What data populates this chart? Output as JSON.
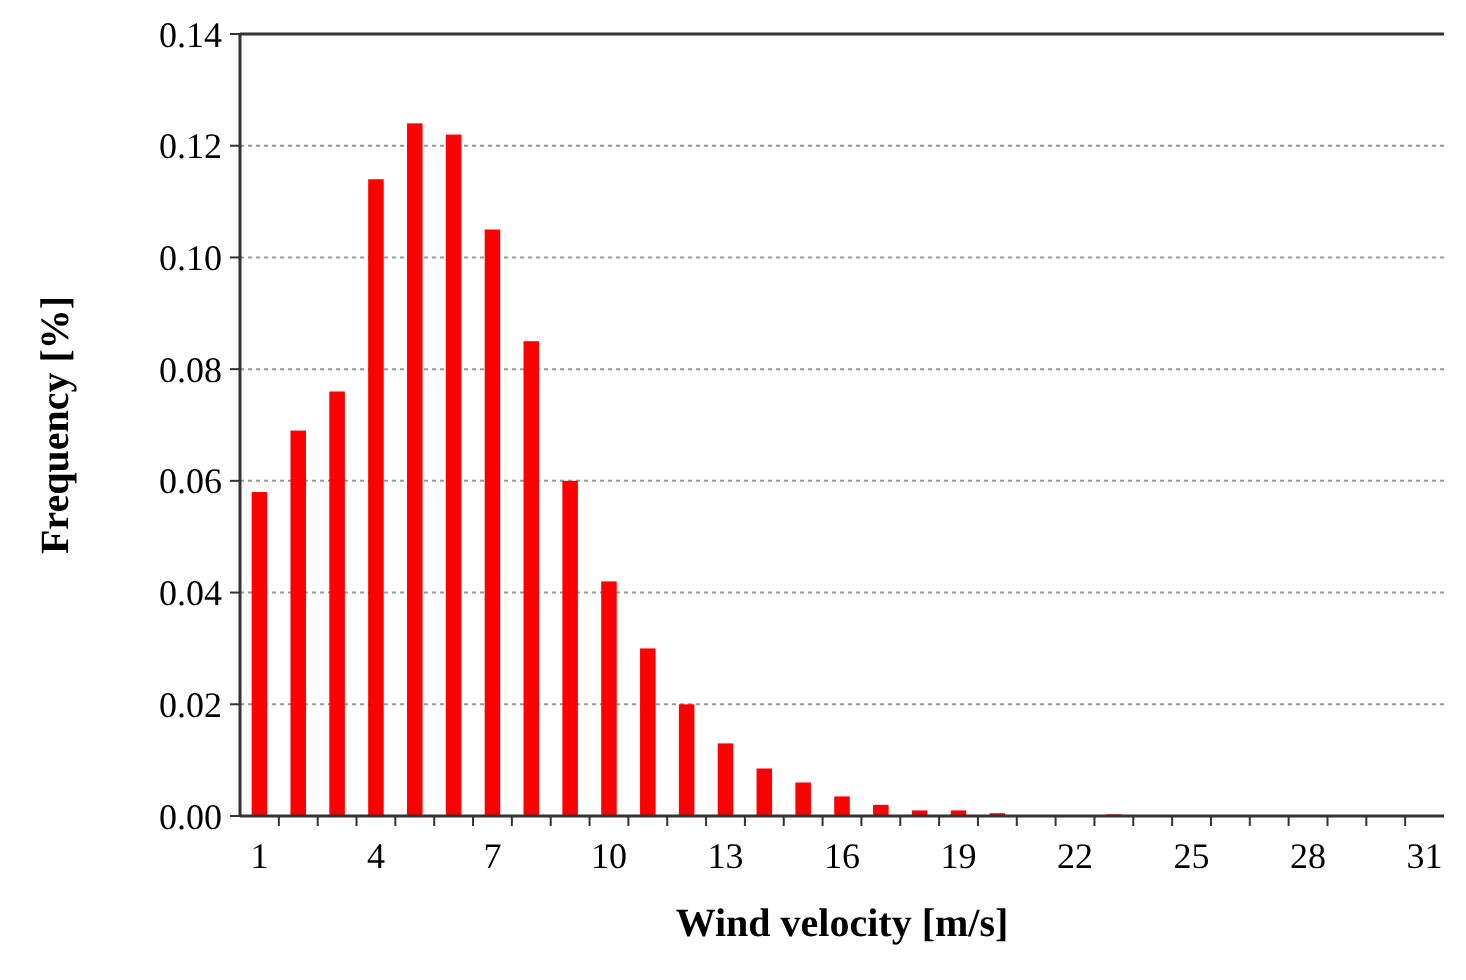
{
  "chart_data": {
    "type": "bar",
    "xlabel": "Wind velocity [m/s]",
    "ylabel": "Frequency [%]",
    "categories": [
      "1",
      null,
      null,
      "4",
      null,
      null,
      "7",
      null,
      null,
      "10",
      null,
      null,
      "13",
      null,
      null,
      "16",
      null,
      null,
      "19",
      null,
      null,
      "22",
      null,
      null,
      "25",
      null,
      null,
      "28",
      null,
      null,
      "31"
    ],
    "values": [
      0.058,
      0.069,
      0.076,
      0.114,
      0.124,
      0.122,
      0.105,
      0.085,
      0.06,
      0.042,
      0.03,
      0.02,
      0.013,
      0.0085,
      0.006,
      0.0035,
      0.002,
      0.001,
      0.001,
      0.0005,
      null,
      0,
      0.0003,
      0,
      0,
      0,
      0,
      0,
      0,
      0,
      0
    ],
    "color": "#ff0000",
    "ylim": [
      0,
      0.14
    ],
    "yticks": [
      {
        "value": 0,
        "label": "0.00"
      },
      {
        "value": 0.02,
        "label": "0.02"
      },
      {
        "value": 0.04,
        "label": "0.04"
      },
      {
        "value": 0.06,
        "label": "0.06"
      },
      {
        "value": 0.08,
        "label": "0.08"
      },
      {
        "value": 0.1,
        "label": "0.10"
      },
      {
        "value": 0.12,
        "label": "0.12"
      },
      {
        "value": 0.14,
        "label": "0.14"
      }
    ],
    "grid": "y"
  }
}
